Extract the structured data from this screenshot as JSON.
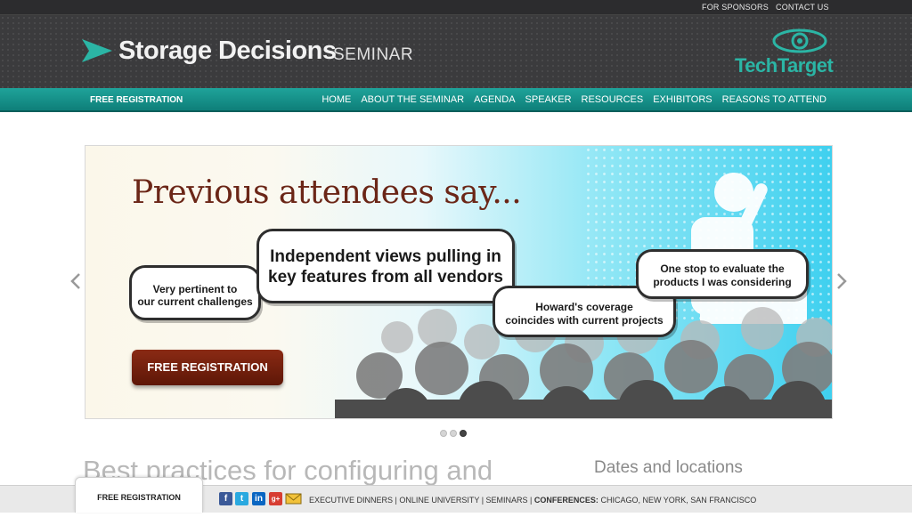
{
  "util": {
    "sponsors": "FOR SPONSORS",
    "contact": "CONTACT US"
  },
  "brand": {
    "title": "Storage Decisions",
    "subtitle": "SEMINAR",
    "publisher": "TechTarget"
  },
  "nav": {
    "free_registration": "FREE REGISTRATION",
    "items": [
      "HOME",
      "ABOUT THE SEMINAR",
      "AGENDA",
      "SPEAKER",
      "RESOURCES",
      "EXHIBITORS",
      "REASONS TO ATTEND"
    ]
  },
  "slider": {
    "headline": "Previous attendees say...",
    "quotes": [
      {
        "line1": "Very pertinent to",
        "line2": "our current challenges"
      },
      {
        "line1": "Independent views pulling in",
        "line2": "key features from all vendors"
      },
      {
        "line1": "Howard's coverage",
        "line2": "coincides with current projects"
      },
      {
        "line1": "One stop to evaluate the",
        "line2": "products I was considering"
      }
    ],
    "cta": "FREE REGISTRATION",
    "slide_count": 3,
    "active_slide": 3
  },
  "content": {
    "title": "Best practices for configuring and",
    "side_title": "Dates and locations"
  },
  "footer": {
    "tab": "FREE REGISTRATION",
    "links": "EXECUTIVE DINNERS | ONLINE UNIVERSITY | SEMINARS |",
    "conferences_label": "CONFERENCES:",
    "conferences_cities": "CHICAGO, NEW YORK, SAN FRANCISCO"
  },
  "colors": {
    "teal": "#1fa39a",
    "brand_red": "#6b2617",
    "header_bg": "#3b3b3d"
  },
  "icons": [
    "facebook-icon",
    "twitter-icon",
    "linkedin-icon",
    "google-plus-icon",
    "email-icon",
    "prev-arrow-icon",
    "next-arrow-icon",
    "techtarget-eye-icon"
  ]
}
